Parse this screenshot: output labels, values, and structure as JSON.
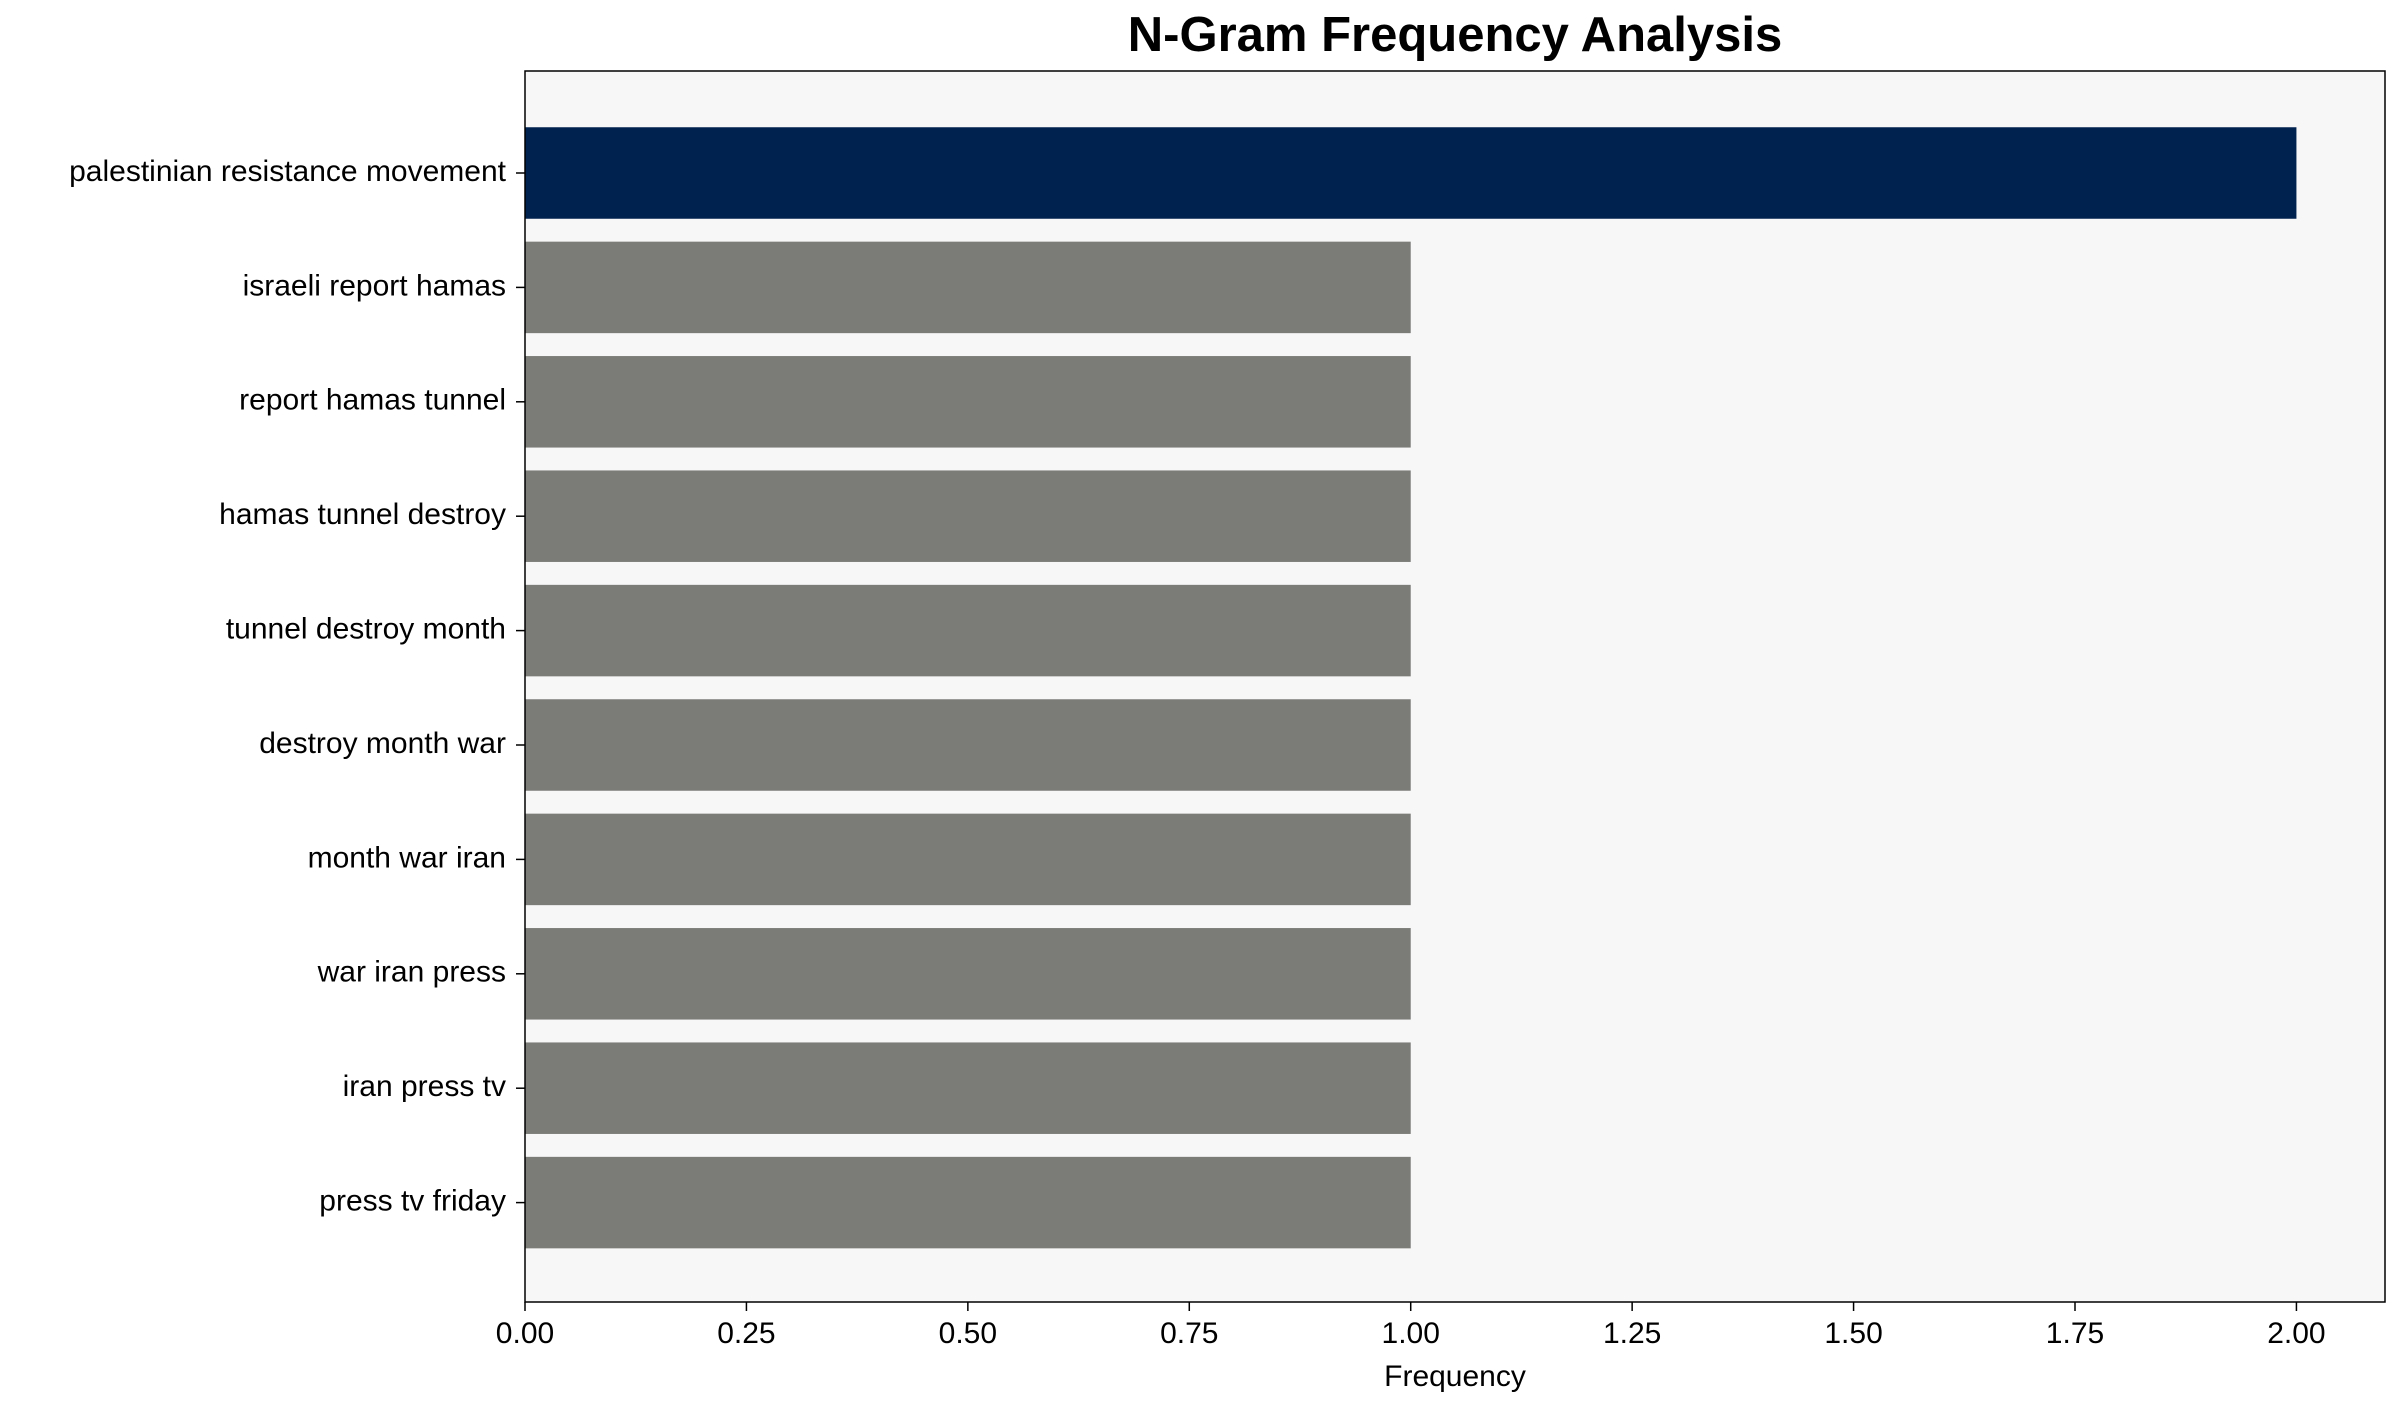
{
  "chart_data": {
    "type": "barh",
    "title": "N-Gram Frequency Analysis",
    "x_label": "Frequency",
    "categories": [
      "palestinian resistance movement",
      "israeli report hamas",
      "report hamas tunnel",
      "hamas tunnel destroy",
      "tunnel destroy month",
      "destroy month war",
      "month war iran",
      "war iran press",
      "iran press tv",
      "press tv friday"
    ],
    "values": [
      2,
      1,
      1,
      1,
      1,
      1,
      1,
      1,
      1,
      1
    ],
    "colors": [
      "#00224e",
      "#7b7b78",
      "#7b7b78",
      "#7b7b78",
      "#7b7b78",
      "#7b7b78",
      "#7b7b78",
      "#7b7b78",
      "#7b7b78",
      "#7b7b78"
    ],
    "xlim": [
      0,
      2.1
    ],
    "xticks": [
      {
        "value": 0,
        "label": "0.00"
      },
      {
        "value": 0.25,
        "label": "0.25"
      },
      {
        "value": 0.5,
        "label": "0.50"
      },
      {
        "value": 0.75,
        "label": "0.75"
      },
      {
        "value": 1,
        "label": "1.00"
      },
      {
        "value": 1.25,
        "label": "1.25"
      },
      {
        "value": 1.5,
        "label": "1.50"
      },
      {
        "value": 1.75,
        "label": "1.75"
      },
      {
        "value": 2,
        "label": "2.00"
      }
    ],
    "grid": false
  }
}
